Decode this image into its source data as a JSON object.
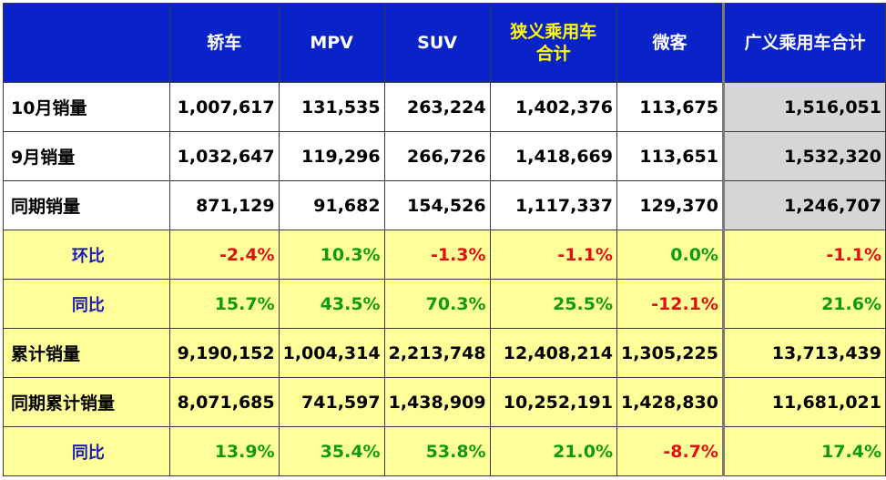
{
  "header": {
    "corner": "",
    "cols": [
      "轿车",
      "MPV",
      "SUV",
      "狭义乘用车合计",
      "微客",
      "广义乘用车合计"
    ],
    "col3_line1": "狭义乘用车",
    "col3_line2": "合计"
  },
  "rows": [
    {
      "label": "10月销量",
      "vals": [
        "1,007,617",
        "131,535",
        "263,224",
        "1,402,376",
        "113,675",
        "1,516,051"
      ]
    },
    {
      "label": "9月销量",
      "vals": [
        "1,032,647",
        "119,296",
        "266,726",
        "1,418,669",
        "113,651",
        "1,532,320"
      ]
    },
    {
      "label": "同期销量",
      "vals": [
        "871,129",
        "91,682",
        "154,526",
        "1,117,337",
        "129,370",
        "1,246,707"
      ]
    },
    {
      "label": "环比",
      "vals": [
        "-2.4%",
        "10.3%",
        "-1.3%",
        "-1.1%",
        "0.0%",
        "-1.1%"
      ]
    },
    {
      "label": "同比",
      "vals": [
        "15.7%",
        "43.5%",
        "70.3%",
        "25.5%",
        "-12.1%",
        "21.6%"
      ]
    },
    {
      "label": "累计销量",
      "vals": [
        "9,190,152",
        "1,004,314",
        "2,213,748",
        "12,408,214",
        "1,305,225",
        "13,713,439"
      ]
    },
    {
      "label": "同期累计销量",
      "vals": [
        "8,071,685",
        "741,597",
        "1,438,909",
        "10,252,191",
        "1,428,830",
        "11,681,021"
      ]
    },
    {
      "label": "同比",
      "vals": [
        "13.9%",
        "35.4%",
        "53.8%",
        "21.0%",
        "-8.7%",
        "17.4%"
      ]
    }
  ],
  "colors": {
    "header_bg": "#0a23c9",
    "header_text": "#ffffff",
    "header_highlight": "#ffff00",
    "yellow_row": "#ffff99",
    "total_gray": "#d6d6d6",
    "positive": "#119a11",
    "negative": "#e01010"
  }
}
